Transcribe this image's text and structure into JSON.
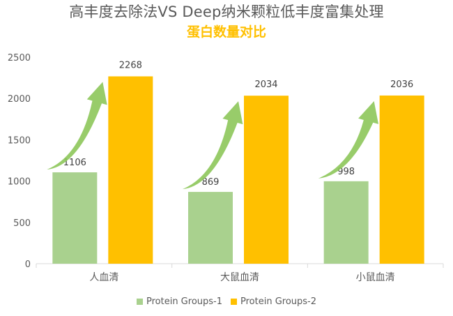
{
  "title": "高丰度去除法VS Deep纳米颗粒低丰度富集处理",
  "subtitle": "蛋白数量对比",
  "colors": {
    "series1": "#a9d18e",
    "series2": "#ffc000",
    "arrow": "#8dc75a",
    "axis": "#d9d9d9",
    "text": "#595959"
  },
  "chart_data": {
    "type": "bar",
    "categories": [
      "人血清",
      "大鼠血清",
      "小鼠血清"
    ],
    "series": [
      {
        "name": "Protein Groups-1",
        "values": [
          1106,
          869,
          998
        ]
      },
      {
        "name": "Protein Groups-2",
        "values": [
          2268,
          2034,
          2036
        ]
      }
    ],
    "ylim": [
      0,
      2500
    ],
    "yticks": [
      "0",
      "500",
      "1000",
      "1500",
      "2000",
      "2500"
    ],
    "grid": false,
    "legend": "bottom",
    "data_labels": true
  }
}
